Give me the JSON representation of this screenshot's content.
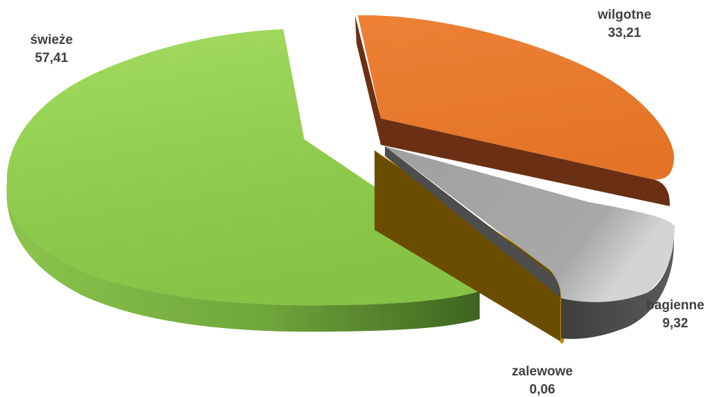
{
  "chart_data": {
    "type": "pie",
    "style": "3d-exploded",
    "title": "",
    "slices": [
      {
        "name": "świeże",
        "value": 57.41,
        "label_value": "57,41",
        "color": "#92d050",
        "side_color": "#5e8f2b"
      },
      {
        "name": "wilgotne",
        "value": 33.21,
        "label_value": "33,21",
        "color": "#ed7d31",
        "side_color": "#6b3014"
      },
      {
        "name": "bagienne",
        "value": 9.32,
        "label_value": "9,32",
        "color": "#a5a5a5",
        "side_color": "#4a4a4a"
      },
      {
        "name": "zalewowe",
        "value": 0.06,
        "label_value": "0,06",
        "color": "#c08a00",
        "side_color": "#6b4d00"
      }
    ],
    "legend": "none",
    "data_labels": "outside, name above value"
  }
}
